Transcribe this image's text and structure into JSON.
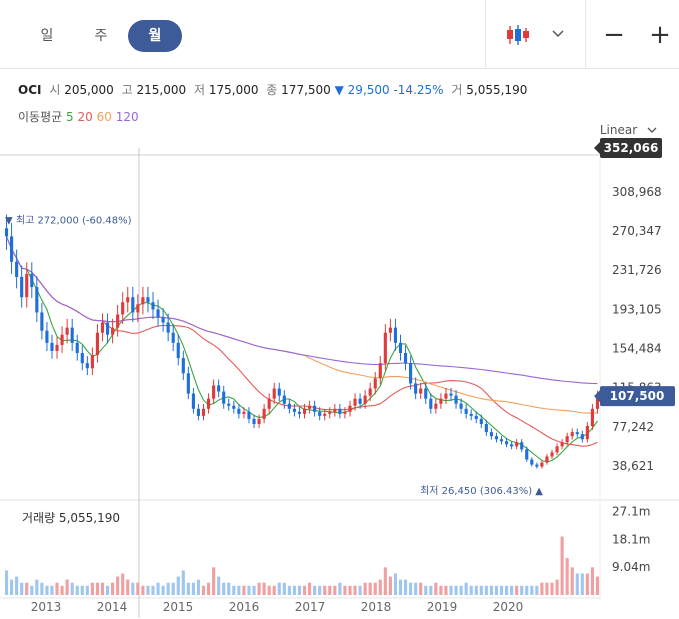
{
  "tabs": [
    {
      "label": "일",
      "active": false
    },
    {
      "label": "주",
      "active": false
    },
    {
      "label": "월",
      "active": true
    }
  ],
  "toolbar": {
    "chart_type_icon": "candlestick-icon",
    "dropdown_icon": "chevron-down-icon",
    "zoom_out": "−",
    "zoom_in": "+"
  },
  "quote": {
    "name": "OCI",
    "open_label": "시",
    "open": "205,000",
    "high_label": "고",
    "high": "215,000",
    "low_label": "저",
    "low": "175,000",
    "close_label": "종",
    "close": "177,500",
    "change": "▼ 29,500 -14.25%",
    "volume_label": "거",
    "volume": "5,055,190"
  },
  "ma": {
    "label": "이동평균",
    "periods": [
      {
        "p": "5",
        "color": "#39a83d"
      },
      {
        "p": "20",
        "color": "#e55a5a"
      },
      {
        "p": "60",
        "color": "#f5a05a"
      },
      {
        "p": "120",
        "color": "#9966dd"
      }
    ]
  },
  "scale_label": "Linear",
  "colors": {
    "up": "#e03b3b",
    "down": "#1e6fd9",
    "vol_up": "#f0a0a0",
    "vol_down": "#9fc6ef",
    "price_badge": "#3d5a99"
  },
  "chart_data": {
    "type": "candlestick",
    "price_axis": {
      "ticks": [
        "308,968",
        "270,347",
        "231,726",
        "193,105",
        "154,484",
        "115,863",
        "77,242",
        "38,621"
      ],
      "tick_values": [
        308968,
        270347,
        231726,
        193105,
        154484,
        115863,
        77242,
        38621
      ],
      "range": [
        10000,
        360000
      ],
      "top_badge": "352,066",
      "top_badge_value": 352066,
      "current_badge": "107,500",
      "current_value": 107500
    },
    "x_axis": {
      "labels": [
        "2013",
        "2014",
        "2015",
        "2016",
        "2017",
        "2018",
        "2019",
        "2020"
      ]
    },
    "annotations": {
      "high": "▼ 최고 272,000 (-60.48%)",
      "high_value": 272000,
      "low": "최저 26,450 (306.43%) ▲",
      "low_value": 26450
    },
    "volume_panel": {
      "label": "거래량",
      "value": "5,055,190",
      "ticks": [
        "27.1m",
        "18.1m",
        "9.04m"
      ],
      "tick_values": [
        27.1,
        18.1,
        9.04
      ]
    },
    "closes": [
      265000,
      240000,
      225000,
      205000,
      228000,
      215000,
      190000,
      172000,
      160000,
      152000,
      158000,
      168000,
      175000,
      160000,
      150000,
      140000,
      135000,
      148000,
      170000,
      180000,
      168000,
      175000,
      188000,
      200000,
      205000,
      190000,
      198000,
      205000,
      200000,
      193000,
      185000,
      180000,
      170000,
      160000,
      145000,
      130000,
      110000,
      95000,
      88000,
      95000,
      105000,
      118000,
      112000,
      100000,
      98000,
      95000,
      90000,
      92000,
      85000,
      80000,
      85000,
      95000,
      105000,
      115000,
      108000,
      100000,
      95000,
      92000,
      90000,
      95000,
      98000,
      92000,
      88000,
      90000,
      92000,
      95000,
      90000,
      92000,
      98000,
      105000,
      100000,
      108000,
      115000,
      125000,
      140000,
      170000,
      175000,
      160000,
      150000,
      140000,
      120000,
      110000,
      115000,
      105000,
      95000,
      100000,
      105000,
      110000,
      108000,
      100000,
      95000,
      90000,
      88000,
      85000,
      80000,
      72000,
      68000,
      65000,
      63000,
      60000,
      58000,
      62000,
      55000,
      45000,
      40000,
      38000,
      42000,
      48000,
      52000,
      58000,
      62000,
      68000,
      72000,
      70000,
      65000,
      78000,
      95000,
      107500
    ],
    "volumes": [
      8,
      5,
      6,
      4,
      4,
      3,
      5,
      4,
      3,
      3,
      4,
      3,
      5,
      4,
      3,
      3,
      3,
      4,
      4,
      4,
      3,
      4,
      6,
      7,
      5,
      4,
      4,
      3,
      3,
      3,
      4,
      3,
      4,
      4,
      6,
      8,
      4,
      4,
      5,
      3,
      4,
      9,
      6,
      4,
      4,
      3,
      3,
      3,
      3,
      3,
      4,
      4,
      3,
      3,
      4,
      4,
      3,
      3,
      3,
      3,
      4,
      3,
      3,
      3,
      3,
      3,
      4,
      3,
      3,
      3,
      3,
      4,
      4,
      4,
      5,
      9,
      6,
      7,
      5,
      5,
      4,
      4,
      4,
      3,
      3,
      4,
      3,
      3,
      3,
      3,
      3,
      4,
      3,
      3,
      3,
      3,
      3,
      3,
      3,
      3,
      3,
      3,
      3,
      3,
      3,
      3,
      4,
      4,
      4,
      5,
      19,
      12,
      9,
      7,
      7,
      7,
      9,
      6
    ]
  }
}
